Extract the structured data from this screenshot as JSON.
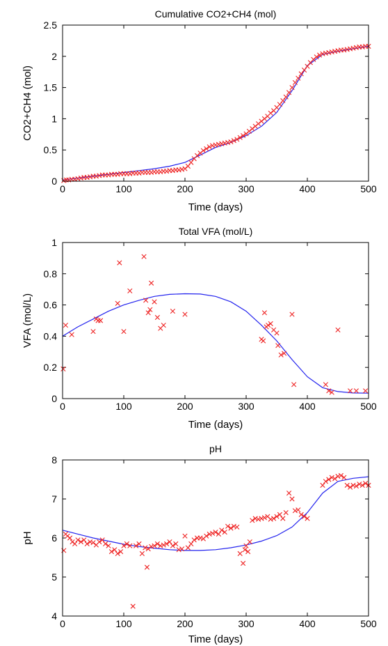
{
  "chart_data": [
    {
      "type": "scatter",
      "title": "Cumulative CO2+CH4 (mol)",
      "xlabel": "Time (days)",
      "ylabel": "CO2+CH4 (mol)",
      "xlim": [
        0,
        500
      ],
      "ylim": [
        0,
        2.5
      ],
      "xticks": [
        0,
        100,
        200,
        300,
        400,
        500
      ],
      "yticks": [
        0,
        0.5,
        1,
        1.5,
        2,
        2.5
      ],
      "yticklabels": [
        "0",
        "0.5",
        "1",
        "1.5",
        "2",
        "2.5"
      ],
      "grid": false,
      "model_line": {
        "x": [
          0,
          25,
          50,
          75,
          100,
          125,
          150,
          175,
          200,
          225,
          250,
          275,
          300,
          325,
          350,
          375,
          400,
          425,
          450,
          475,
          500
        ],
        "y": [
          0.02,
          0.05,
          0.08,
          0.11,
          0.14,
          0.17,
          0.2,
          0.24,
          0.3,
          0.42,
          0.54,
          0.62,
          0.73,
          0.88,
          1.1,
          1.45,
          1.85,
          2.03,
          2.08,
          2.12,
          2.16
        ]
      },
      "observed": {
        "x": [
          2,
          6,
          10,
          15,
          20,
          25,
          30,
          35,
          40,
          45,
          50,
          55,
          60,
          65,
          70,
          75,
          80,
          85,
          90,
          95,
          100,
          105,
          110,
          115,
          120,
          125,
          130,
          135,
          140,
          145,
          150,
          155,
          160,
          165,
          170,
          175,
          180,
          185,
          190,
          195,
          200,
          205,
          210,
          215,
          220,
          225,
          230,
          235,
          240,
          245,
          250,
          255,
          260,
          265,
          270,
          275,
          280,
          285,
          290,
          295,
          300,
          305,
          310,
          315,
          320,
          325,
          330,
          335,
          340,
          345,
          350,
          355,
          360,
          365,
          370,
          375,
          380,
          385,
          390,
          395,
          400,
          405,
          410,
          415,
          420,
          425,
          430,
          435,
          440,
          445,
          450,
          455,
          460,
          465,
          470,
          475,
          480,
          485,
          490,
          495,
          500
        ],
        "y": [
          0.01,
          0.02,
          0.02,
          0.03,
          0.03,
          0.04,
          0.05,
          0.06,
          0.06,
          0.07,
          0.08,
          0.08,
          0.09,
          0.1,
          0.1,
          0.1,
          0.11,
          0.11,
          0.11,
          0.12,
          0.12,
          0.12,
          0.12,
          0.13,
          0.13,
          0.13,
          0.14,
          0.14,
          0.14,
          0.14,
          0.15,
          0.15,
          0.15,
          0.16,
          0.16,
          0.17,
          0.17,
          0.18,
          0.18,
          0.19,
          0.2,
          0.24,
          0.3,
          0.36,
          0.41,
          0.45,
          0.49,
          0.52,
          0.55,
          0.57,
          0.58,
          0.59,
          0.6,
          0.61,
          0.62,
          0.63,
          0.65,
          0.67,
          0.7,
          0.73,
          0.76,
          0.8,
          0.84,
          0.88,
          0.92,
          0.96,
          1.0,
          1.04,
          1.09,
          1.13,
          1.18,
          1.23,
          1.29,
          1.35,
          1.42,
          1.5,
          1.58,
          1.65,
          1.72,
          1.78,
          1.84,
          1.9,
          1.95,
          1.99,
          2.02,
          2.04,
          2.05,
          2.06,
          2.07,
          2.08,
          2.09,
          2.1,
          2.1,
          2.11,
          2.12,
          2.13,
          2.14,
          2.15,
          2.15,
          2.16,
          2.16
        ]
      }
    },
    {
      "type": "scatter",
      "title": "Total VFA (mol/L)",
      "xlabel": "Time (days)",
      "ylabel": "VFA (mol/L)",
      "xlim": [
        0,
        500
      ],
      "ylim": [
        0,
        1
      ],
      "xticks": [
        0,
        100,
        200,
        300,
        400,
        500
      ],
      "yticks": [
        0,
        0.2,
        0.4,
        0.6,
        0.8,
        1
      ],
      "yticklabels": [
        "0",
        "0.2",
        "0.4",
        "0.6",
        "0.8",
        "1"
      ],
      "grid": false,
      "model_line": {
        "x": [
          0,
          25,
          50,
          75,
          100,
          125,
          150,
          175,
          200,
          225,
          250,
          275,
          300,
          325,
          350,
          375,
          400,
          425,
          450,
          475,
          500
        ],
        "y": [
          0.4,
          0.46,
          0.51,
          0.56,
          0.6,
          0.63,
          0.655,
          0.668,
          0.672,
          0.67,
          0.655,
          0.62,
          0.56,
          0.47,
          0.37,
          0.25,
          0.14,
          0.07,
          0.045,
          0.036,
          0.035
        ]
      },
      "observed": {
        "x": [
          1,
          5,
          15,
          50,
          55,
          58,
          62,
          90,
          93,
          100,
          110,
          133,
          136,
          140,
          143,
          145,
          150,
          155,
          160,
          165,
          180,
          200,
          325,
          328,
          330,
          333,
          336,
          340,
          345,
          350,
          352,
          357,
          362,
          375,
          378,
          430,
          435,
          440,
          450,
          470,
          480,
          495
        ],
        "y": [
          0.19,
          0.47,
          0.41,
          0.43,
          0.51,
          0.5,
          0.5,
          0.61,
          0.87,
          0.43,
          0.69,
          0.91,
          0.63,
          0.55,
          0.57,
          0.74,
          0.62,
          0.52,
          0.45,
          0.47,
          0.56,
          0.54,
          0.38,
          0.37,
          0.55,
          0.46,
          0.47,
          0.48,
          0.44,
          0.42,
          0.34,
          0.28,
          0.29,
          0.54,
          0.09,
          0.09,
          0.05,
          0.04,
          0.44,
          0.05,
          0.05,
          0.05
        ]
      }
    },
    {
      "type": "scatter",
      "title": "pH",
      "xlabel": "Time (days)",
      "ylabel": "pH",
      "xlim": [
        0,
        500
      ],
      "ylim": [
        4,
        8
      ],
      "xticks": [
        0,
        100,
        200,
        300,
        400,
        500
      ],
      "yticks": [
        4,
        5,
        6,
        7,
        8
      ],
      "yticklabels": [
        "4",
        "5",
        "6",
        "7",
        "8"
      ],
      "grid": false,
      "model_line": {
        "x": [
          0,
          25,
          50,
          75,
          100,
          125,
          150,
          175,
          200,
          225,
          250,
          275,
          300,
          325,
          350,
          375,
          400,
          425,
          450,
          475,
          500
        ],
        "y": [
          6.2,
          6.1,
          6.0,
          5.92,
          5.84,
          5.78,
          5.74,
          5.7,
          5.68,
          5.68,
          5.7,
          5.75,
          5.82,
          5.92,
          6.06,
          6.28,
          6.65,
          7.15,
          7.45,
          7.53,
          7.57
        ]
      },
      "observed": {
        "x": [
          2,
          5,
          8,
          12,
          16,
          20,
          25,
          30,
          35,
          40,
          45,
          50,
          55,
          60,
          65,
          70,
          75,
          80,
          85,
          90,
          95,
          100,
          105,
          110,
          115,
          120,
          125,
          130,
          135,
          138,
          140,
          145,
          150,
          155,
          160,
          165,
          170,
          175,
          180,
          185,
          190,
          195,
          200,
          205,
          210,
          215,
          220,
          225,
          230,
          235,
          240,
          245,
          250,
          255,
          260,
          265,
          270,
          275,
          280,
          285,
          290,
          295,
          298,
          300,
          303,
          306,
          310,
          315,
          320,
          325,
          330,
          335,
          340,
          345,
          350,
          355,
          360,
          365,
          370,
          375,
          380,
          385,
          390,
          395,
          400,
          425,
          430,
          435,
          440,
          445,
          450,
          455,
          460,
          465,
          470,
          475,
          480,
          485,
          490,
          495,
          500
        ],
        "y": [
          5.68,
          6.1,
          6.05,
          6.0,
          5.9,
          5.85,
          5.95,
          5.9,
          5.95,
          5.85,
          5.9,
          5.88,
          5.82,
          5.9,
          5.95,
          5.85,
          5.8,
          5.65,
          5.7,
          5.6,
          5.65,
          5.8,
          5.85,
          5.8,
          4.25,
          5.8,
          5.85,
          5.6,
          5.75,
          5.25,
          5.72,
          5.78,
          5.8,
          5.85,
          5.8,
          5.82,
          5.85,
          5.9,
          5.8,
          5.85,
          5.7,
          5.72,
          6.05,
          5.75,
          5.85,
          5.95,
          6.0,
          6.0,
          5.98,
          6.05,
          6.1,
          6.12,
          6.15,
          6.1,
          6.2,
          6.15,
          6.3,
          6.25,
          6.3,
          6.28,
          5.6,
          5.35,
          5.7,
          5.8,
          5.65,
          5.9,
          6.45,
          6.5,
          6.48,
          6.5,
          6.52,
          6.55,
          6.48,
          6.5,
          6.55,
          6.6,
          6.5,
          6.65,
          7.15,
          7.0,
          6.7,
          6.72,
          6.6,
          6.55,
          6.5,
          7.35,
          7.45,
          7.5,
          7.55,
          7.52,
          7.58,
          7.6,
          7.55,
          7.35,
          7.3,
          7.35,
          7.33,
          7.38,
          7.35,
          7.4,
          7.35
        ]
      }
    }
  ]
}
